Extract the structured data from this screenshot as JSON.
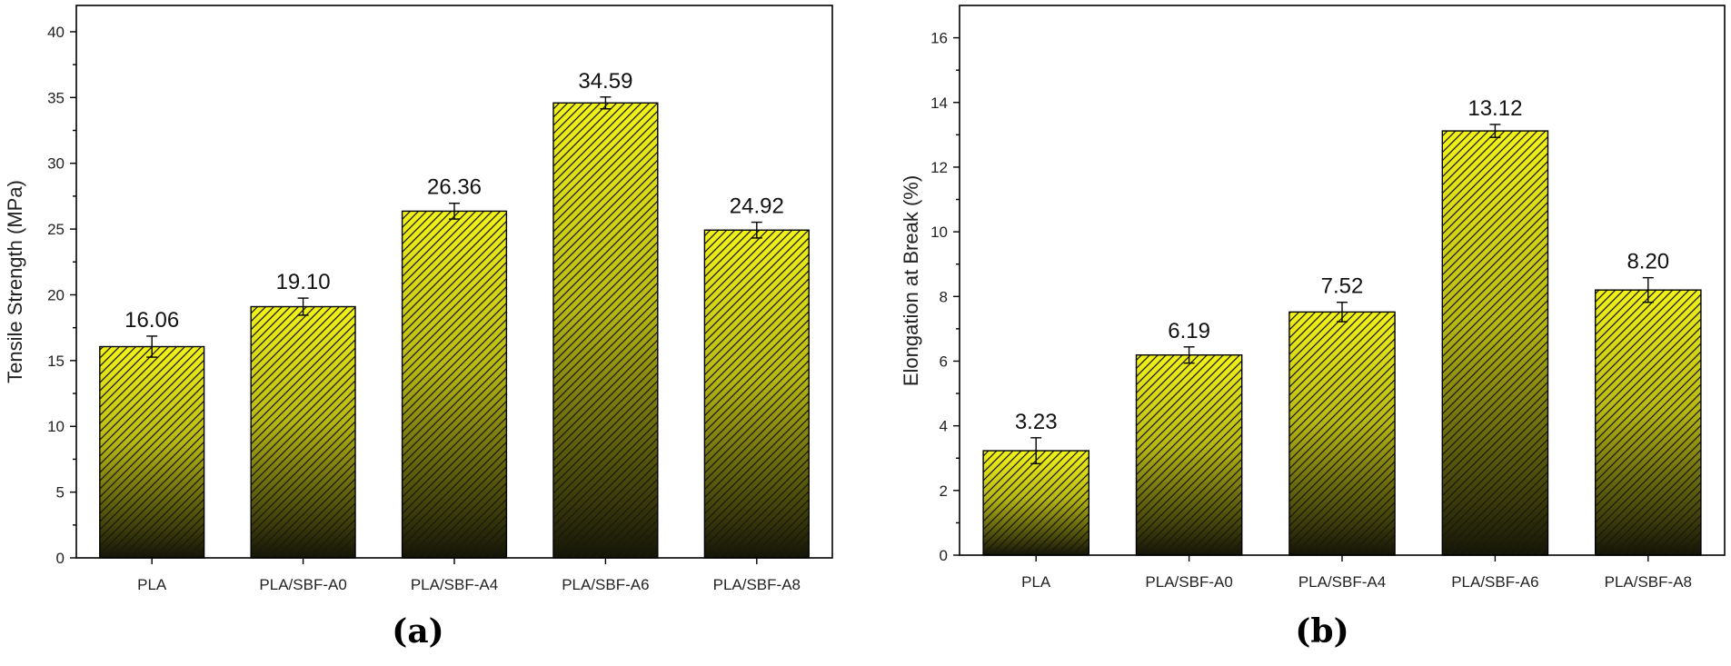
{
  "chart_data": [
    {
      "type": "bar",
      "panel_label": "(a)",
      "categories": [
        "PLA",
        "PLA/SBF-A0",
        "PLA/SBF-A4",
        "PLA/SBF-A6",
        "PLA/SBF-A8"
      ],
      "values": [
        16.06,
        19.1,
        26.36,
        34.59,
        24.92
      ],
      "value_labels": [
        "16.06",
        "19.10",
        "26.36",
        "34.59",
        "24.92"
      ],
      "error": [
        0.8,
        0.65,
        0.6,
        0.45,
        0.6
      ],
      "xlabel": "",
      "ylabel": "Tensile Strength (MPa)",
      "ylim": [
        0,
        42
      ],
      "yticks": [
        0,
        5,
        10,
        15,
        20,
        25,
        30,
        35,
        40
      ],
      "grid": false
    },
    {
      "type": "bar",
      "panel_label": "(b)",
      "categories": [
        "PLA",
        "PLA/SBF-A0",
        "PLA/SBF-A4",
        "PLA/SBF-A6",
        "PLA/SBF-A8"
      ],
      "values": [
        3.23,
        6.19,
        7.52,
        13.12,
        8.2
      ],
      "value_labels": [
        "3.23",
        "6.19",
        "7.52",
        "13.12",
        "8.20"
      ],
      "error": [
        0.4,
        0.25,
        0.3,
        0.2,
        0.38
      ],
      "xlabel": "",
      "ylabel": "Elongation at Break (%)",
      "ylim": [
        0,
        17
      ],
      "yticks": [
        0,
        2,
        4,
        6,
        8,
        10,
        12,
        14,
        16
      ],
      "grid": false
    }
  ],
  "colors": {
    "bar_top": "#f2f21a",
    "bar_bottom": "#141408",
    "hatch": "#1a1a0a"
  }
}
